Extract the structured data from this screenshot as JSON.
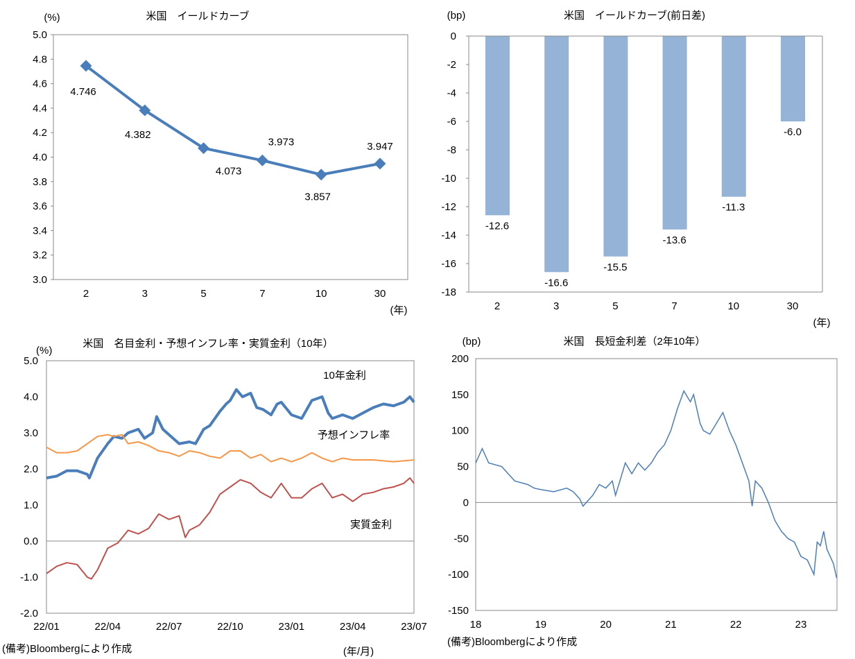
{
  "chart_data": [
    {
      "type": "line",
      "title": "米国　イールドカーブ",
      "ylabel": "(%)",
      "xlabel": "(年)",
      "categories": [
        "2",
        "3",
        "5",
        "7",
        "10",
        "30"
      ],
      "values": [
        4.746,
        4.382,
        4.073,
        3.973,
        3.857,
        3.947
      ],
      "data_labels": [
        "4.746",
        "4.382",
        "4.073",
        "3.973",
        "3.857",
        "3.947"
      ],
      "ylim": [
        3.0,
        5.0
      ],
      "yticks": [
        "3.0",
        "3.2",
        "3.4",
        "3.6",
        "3.8",
        "4.0",
        "4.2",
        "4.4",
        "4.6",
        "4.8",
        "5.0"
      ],
      "color": "#4a7ebb"
    },
    {
      "type": "bar",
      "title": "米国　イールドカーブ(前日差)",
      "ylabel": "(bp)",
      "xlabel": "(年)",
      "categories": [
        "2",
        "3",
        "5",
        "7",
        "10",
        "30"
      ],
      "values": [
        -12.6,
        -16.6,
        -15.5,
        -13.6,
        -11.3,
        -6.0
      ],
      "data_labels": [
        "-12.6",
        "-16.6",
        "-15.5",
        "-13.6",
        "-11.3",
        "-6.0"
      ],
      "ylim": [
        -18,
        0
      ],
      "yticks": [
        "0",
        "-2",
        "-4",
        "-6",
        "-8",
        "-10",
        "-12",
        "-14",
        "-16",
        "-18"
      ],
      "color": "#95b3d7"
    },
    {
      "type": "line",
      "title": "米国　名目金利・予想インフレ率・実質金利（10年）",
      "ylabel": "(%)",
      "xlabel": "(年/月)",
      "note": "(備考)Bloombergにより作成",
      "ylim": [
        -2.0,
        5.0
      ],
      "yticks": [
        "-2.0",
        "-1.0",
        "0.0",
        "1.0",
        "2.0",
        "3.0",
        "4.0",
        "5.0"
      ],
      "xticks": [
        "22/01",
        "22/04",
        "22/07",
        "22/10",
        "23/01",
        "23/04",
        "23/07"
      ],
      "x_unit": "months since 2022/01",
      "series": [
        {
          "name": "10年金利",
          "color": "#4a7ebb",
          "x": [
            0,
            0.5,
            1,
            1.5,
            2,
            2.1,
            2.5,
            3,
            3.3,
            3.7,
            4,
            4.5,
            4.8,
            5.2,
            5.4,
            5.7,
            6,
            6.5,
            7,
            7.3,
            7.7,
            8,
            8.5,
            8.8,
            9,
            9.3,
            9.6,
            10,
            10.3,
            10.6,
            11,
            11.3,
            11.5,
            12,
            12.5,
            13,
            13.5,
            13.8,
            14,
            14.5,
            15,
            15.5,
            16,
            16.5,
            17,
            17.5,
            17.8,
            18
          ],
          "y": [
            1.75,
            1.8,
            1.95,
            1.95,
            1.85,
            1.75,
            2.3,
            2.7,
            2.9,
            2.85,
            3.0,
            3.1,
            2.85,
            3.0,
            3.45,
            3.1,
            2.95,
            2.7,
            2.75,
            2.7,
            3.1,
            3.2,
            3.6,
            3.8,
            3.9,
            4.2,
            4.0,
            4.1,
            3.7,
            3.65,
            3.5,
            3.8,
            3.85,
            3.5,
            3.4,
            3.9,
            4.0,
            3.55,
            3.4,
            3.5,
            3.4,
            3.55,
            3.7,
            3.8,
            3.75,
            3.85,
            4.0,
            3.85
          ]
        },
        {
          "name": "予想インフレ率",
          "color": "#f79646",
          "x": [
            0,
            0.5,
            1,
            1.5,
            2,
            2.5,
            3,
            3.3,
            3.7,
            4,
            4.5,
            5,
            5.5,
            6,
            6.5,
            7,
            7.5,
            8,
            8.5,
            9,
            9.5,
            10,
            10.5,
            11,
            11.5,
            12,
            12.5,
            13,
            13.5,
            14,
            14.5,
            15,
            16,
            17,
            18
          ],
          "y": [
            2.6,
            2.45,
            2.45,
            2.5,
            2.7,
            2.9,
            2.95,
            2.9,
            2.95,
            2.7,
            2.75,
            2.65,
            2.5,
            2.45,
            2.35,
            2.5,
            2.45,
            2.35,
            2.3,
            2.5,
            2.5,
            2.3,
            2.4,
            2.2,
            2.3,
            2.2,
            2.3,
            2.45,
            2.3,
            2.2,
            2.3,
            2.25,
            2.25,
            2.2,
            2.25
          ]
        },
        {
          "name": "実質金利",
          "color": "#c0504d",
          "x": [
            0,
            0.5,
            1,
            1.5,
            2,
            2.2,
            2.5,
            3,
            3.5,
            4,
            4.5,
            5,
            5.5,
            6,
            6.5,
            6.8,
            7,
            7.5,
            8,
            8.5,
            9,
            9.5,
            10,
            10.5,
            11,
            11.5,
            12,
            12.5,
            13,
            13.5,
            14,
            14.5,
            15,
            15.5,
            16,
            16.5,
            17,
            17.5,
            17.8,
            18
          ],
          "y": [
            -0.9,
            -0.7,
            -0.6,
            -0.65,
            -1.0,
            -1.05,
            -0.8,
            -0.2,
            -0.05,
            0.3,
            0.2,
            0.35,
            0.75,
            0.6,
            0.7,
            0.1,
            0.3,
            0.45,
            0.8,
            1.3,
            1.5,
            1.7,
            1.6,
            1.35,
            1.2,
            1.6,
            1.2,
            1.2,
            1.45,
            1.6,
            1.2,
            1.3,
            1.1,
            1.3,
            1.35,
            1.45,
            1.5,
            1.6,
            1.75,
            1.6
          ]
        }
      ]
    },
    {
      "type": "line",
      "title": "米国　長短金利差（2年10年）",
      "ylabel": "(bp)",
      "note": "(備考)Bloombergにより作成",
      "ylim": [
        -150,
        200
      ],
      "yticks": [
        "-150",
        "-100",
        "-50",
        "0",
        "50",
        "100",
        "150",
        "200"
      ],
      "xticks": [
        "18",
        "19",
        "20",
        "21",
        "22",
        "23"
      ],
      "x_unit": "years since 2018",
      "series": [
        {
          "name": "2年10年",
          "color": "#4a7ebb",
          "x": [
            0,
            0.1,
            0.2,
            0.4,
            0.5,
            0.6,
            0.8,
            0.9,
            1.0,
            1.2,
            1.4,
            1.5,
            1.6,
            1.65,
            1.8,
            1.9,
            2.0,
            2.1,
            2.15,
            2.3,
            2.4,
            2.5,
            2.6,
            2.7,
            2.8,
            2.9,
            3.0,
            3.1,
            3.2,
            3.3,
            3.35,
            3.45,
            3.5,
            3.6,
            3.7,
            3.8,
            3.9,
            4.0,
            4.1,
            4.2,
            4.25,
            4.3,
            4.4,
            4.5,
            4.6,
            4.7,
            4.8,
            4.9,
            5.0,
            5.1,
            5.2,
            5.25,
            5.3,
            5.35,
            5.4,
            5.5,
            5.55
          ],
          "y": [
            55,
            75,
            55,
            50,
            40,
            30,
            25,
            20,
            18,
            15,
            20,
            15,
            5,
            -5,
            10,
            25,
            20,
            30,
            10,
            55,
            40,
            55,
            45,
            55,
            70,
            80,
            100,
            130,
            155,
            140,
            150,
            110,
            100,
            95,
            110,
            125,
            100,
            80,
            55,
            30,
            -5,
            30,
            20,
            0,
            -25,
            -40,
            -50,
            -55,
            -75,
            -80,
            -100,
            -55,
            -60,
            -40,
            -65,
            -85,
            -105
          ]
        }
      ]
    }
  ]
}
